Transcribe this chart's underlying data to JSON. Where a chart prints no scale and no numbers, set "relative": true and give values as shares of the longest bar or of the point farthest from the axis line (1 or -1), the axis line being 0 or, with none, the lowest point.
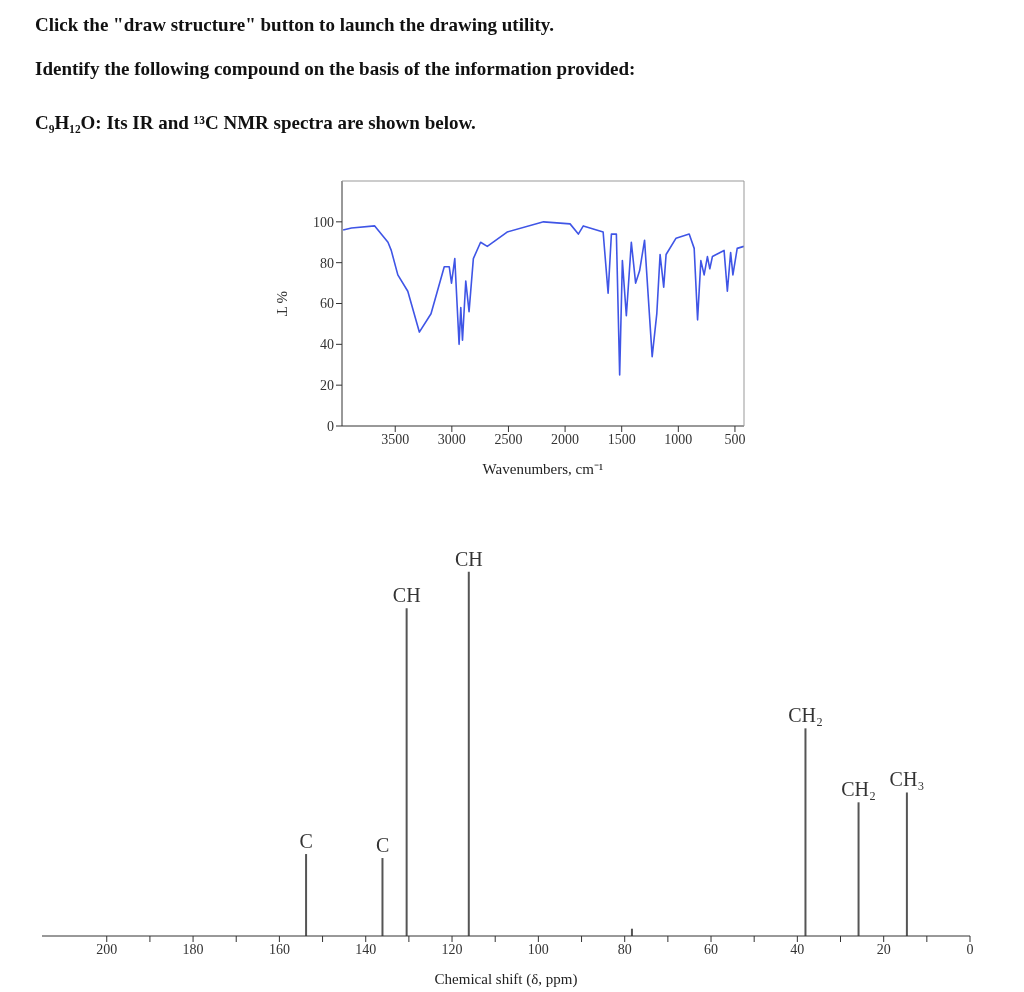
{
  "chart_data": [
    {
      "type": "line",
      "title": "Click the \"draw structure\" button to launch the drawing utility.",
      "subtitle": "Identify the following compound on the basis of the information provided:",
      "annotations": [
        "C₉H₁₂O: Its IR and ¹³C NMR spectra are shown below."
      ],
      "xlabel": "Wavenumbers, cm⁻¹",
      "ylabel": "% T",
      "xlim": [
        3970,
        420
      ],
      "xticks": [
        3500,
        3000,
        2500,
        2000,
        1500,
        1000,
        500
      ],
      "ylim": [
        0,
        120
      ],
      "yticks": [
        0,
        20,
        40,
        60,
        80,
        100
      ],
      "grid": false,
      "legend": false,
      "marker": "none",
      "line_style": "solid",
      "series": [
        {
          "color": "#3f55e6",
          "x": [
            3960,
            3886,
            3681,
            3564,
            3535,
            3477,
            3389,
            3287,
            3184,
            3067,
            3023,
            3003,
            2974,
            2936,
            2921,
            2906,
            2877,
            2848,
            2810,
            2746,
            2687,
            2512,
            2190,
            1956,
            1883,
            1839,
            1664,
            1620,
            1591,
            1547,
            1518,
            1494,
            1459,
            1415,
            1377,
            1342,
            1298,
            1231,
            1190,
            1161,
            1129,
            1108,
            1020,
            904,
            860,
            830,
            801,
            772,
            743,
            722,
            699,
            596,
            567,
            538,
            518,
            480,
            421
          ],
          "values": [
            96,
            97,
            98,
            90,
            86,
            74,
            66,
            46,
            55,
            78,
            78,
            70,
            82,
            40,
            58,
            42,
            71,
            56,
            82,
            90,
            88,
            95,
            100,
            99,
            94,
            98,
            95,
            65,
            94,
            94,
            25,
            81,
            54,
            90,
            70,
            76,
            91,
            34,
            55,
            84,
            68,
            84,
            92,
            94,
            87,
            52,
            81,
            74,
            83,
            77,
            83,
            86,
            66,
            85,
            74,
            87,
            88
          ]
        }
      ]
    },
    {
      "type": "bar",
      "relative": true,
      "xlabel": "Chemical shift (δ, ppm)",
      "xlim": [
        215,
        0
      ],
      "xticks": [
        200,
        {
          "value": 190,
          "label": null
        },
        180,
        {
          "value": 170,
          "label": null
        },
        160,
        {
          "value": 150,
          "label": null
        },
        140,
        {
          "value": 130,
          "label": null
        },
        120,
        {
          "value": 110,
          "label": null
        },
        100,
        {
          "value": 90,
          "label": null
        },
        80,
        {
          "value": 70,
          "label": null
        },
        60,
        {
          "value": 50,
          "label": null
        },
        40,
        {
          "value": 30,
          "label": null
        },
        20,
        {
          "value": 10,
          "label": null
        },
        0
      ],
      "grid": false,
      "legend": false,
      "x": [
        153.8,
        136.1,
        130.5,
        116.1,
        78.3,
        38.1,
        25.8,
        14.6
      ],
      "series": [
        {
          "color": "#555555",
          "values": [
            0.225,
            0.214,
            0.9,
            1,
            0.02,
            0.57,
            0.367,
            0.394
          ]
        }
      ],
      "annotations": [
        {
          "text": "C",
          "x": 153.8,
          "y": 0.225
        },
        {
          "text": "C",
          "x": 136.1,
          "y": 0.214
        },
        {
          "text": "CH",
          "x": 130.5,
          "y": 0.9
        },
        {
          "text": "CH",
          "x": 116.1,
          "y": 1
        },
        {
          "text": "CH₂",
          "x": 38.1,
          "y": 0.57
        },
        {
          "text": "CH₂",
          "x": 25.8,
          "y": 0.367
        },
        {
          "text": "CH₃",
          "x": 14.6,
          "y": 0.394
        }
      ]
    }
  ]
}
